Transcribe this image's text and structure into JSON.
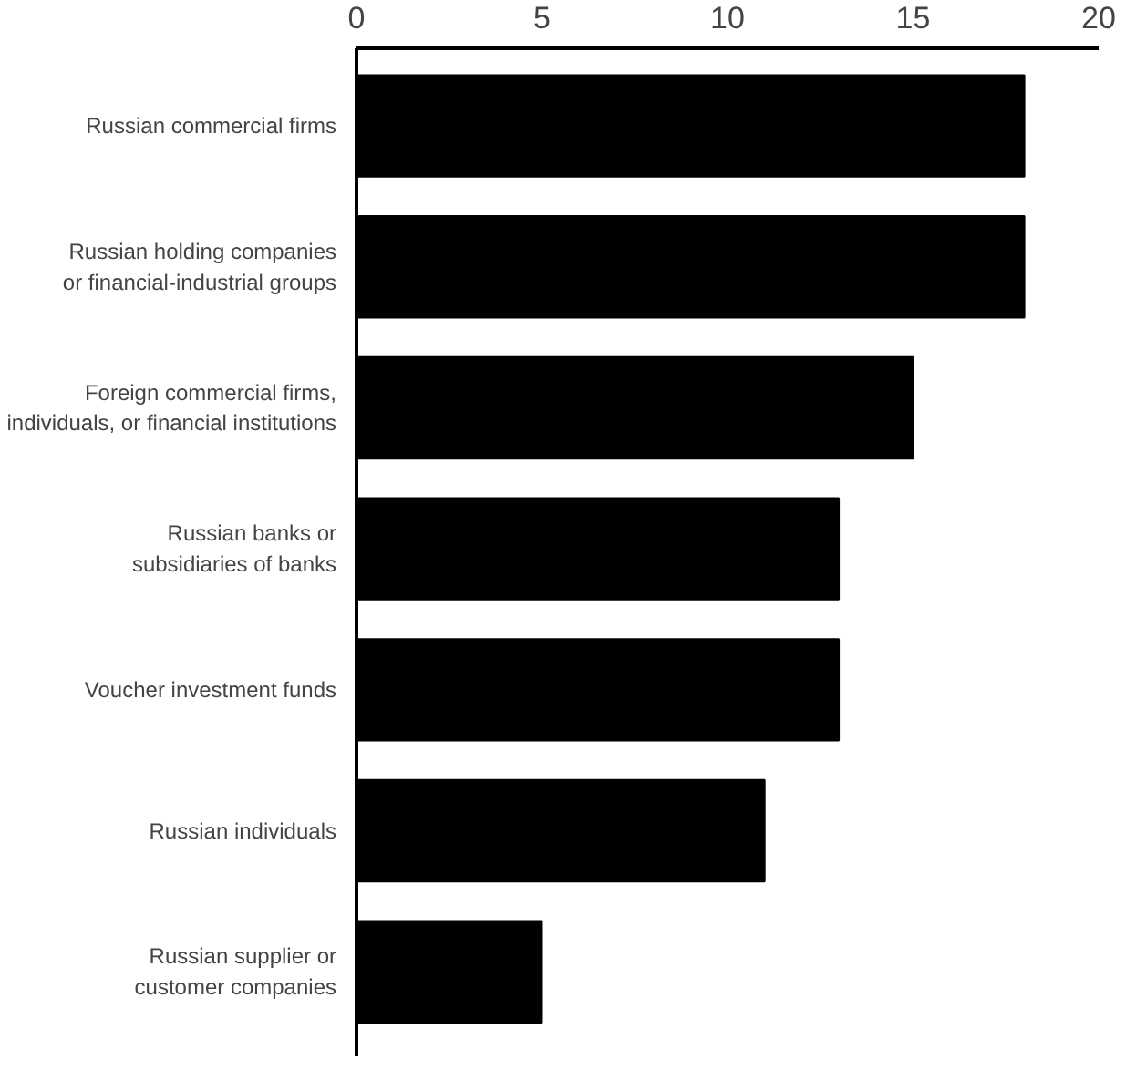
{
  "chart_data": {
    "type": "bar",
    "orientation": "horizontal",
    "categories": [
      "Russian commercial firms",
      "Russian holding companies\nor financial-industrial groups",
      "Foreign commercial firms,\nindividuals, or financial institutions",
      "Russian banks or\nsubsidiaries of banks",
      "Voucher investment funds",
      "Russian individuals",
      "Russian supplier or\ncustomer companies"
    ],
    "values": [
      18,
      18,
      15,
      13,
      13,
      11,
      5
    ],
    "color": "#000000",
    "xlim": [
      0,
      20
    ],
    "xticks": [
      0,
      5,
      10,
      15,
      20
    ],
    "grid": false
  }
}
